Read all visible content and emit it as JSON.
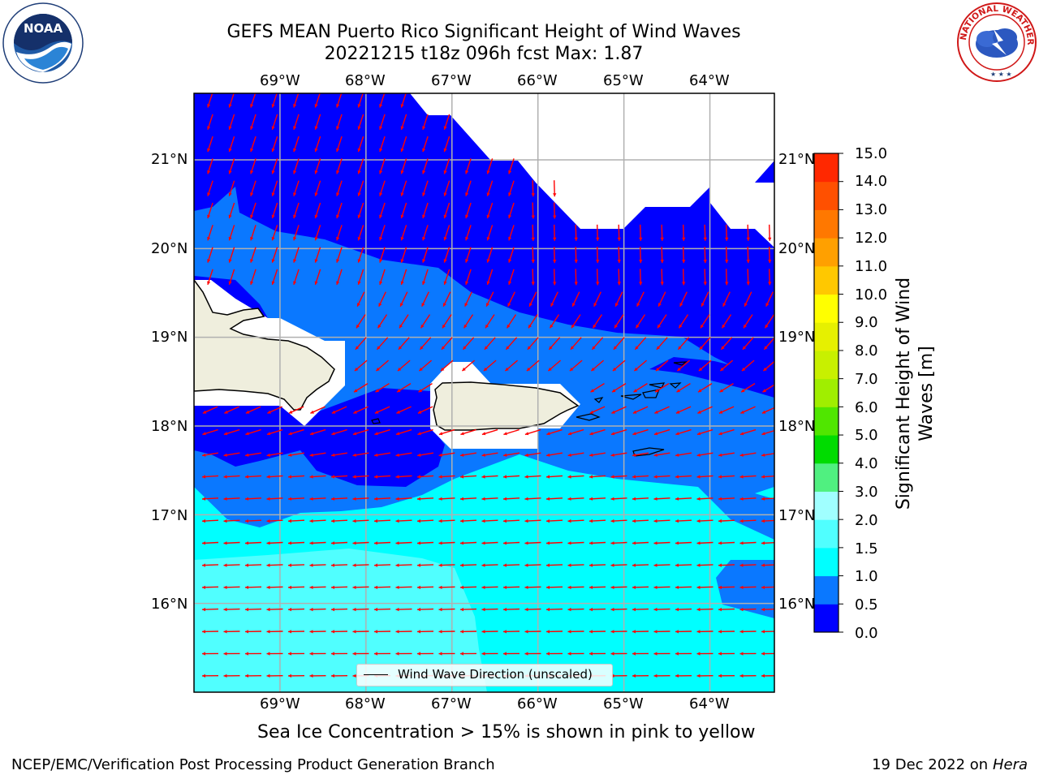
{
  "header": {
    "title_line1": "GEFS MEAN Puerto Rico Significant Height of Wind Waves",
    "title_line2": "20221215 t18z 096h fcst   Max: 1.87"
  },
  "logos": {
    "left": "NOAA",
    "left_ring_text": "NATIONAL OCEANIC AND ATMOSPHERIC ADMINISTRATION · U.S. DEPARTMENT OF COMMERCE",
    "right_ring_text": "NATIONAL WEATHER SERVICE"
  },
  "map": {
    "lon_labels": [
      "69°W",
      "68°W",
      "67°W",
      "66°W",
      "65°W",
      "64°W"
    ],
    "lat_labels": [
      "21°N",
      "20°N",
      "19°N",
      "18°N",
      "17°N",
      "16°N"
    ],
    "extent": {
      "lon_min": -70.0,
      "lon_max": -63.25,
      "lat_min": 15.0,
      "lat_max": 21.75
    },
    "legend": "Wind Wave Direction (unscaled)",
    "colors": {
      "land": "#efeedd",
      "coast": "#000000",
      "grid": "#b0b0b0",
      "arrow": "#ff0000"
    }
  },
  "colorbar": {
    "title": "Significant Height of Wind Waves [m]",
    "ticks": [
      "0.0",
      "0.5",
      "1.0",
      "1.5",
      "2.0",
      "3.0",
      "4.0",
      "5.0",
      "6.0",
      "7.0",
      "8.0",
      "9.0",
      "10.0",
      "11.0",
      "12.0",
      "13.0",
      "14.0",
      "15.0"
    ],
    "colors": [
      "#0000ff",
      "#0a78ff",
      "#00ffff",
      "#50ffff",
      "#a0ffff",
      "#50f080",
      "#00dc00",
      "#50e600",
      "#a0ee00",
      "#c8f000",
      "#e6f000",
      "#ffff00",
      "#ffc800",
      "#ffa000",
      "#ff7800",
      "#ff5000",
      "#ff2800"
    ]
  },
  "note": "Sea Ice Concentration > 15% is shown in pink to yellow",
  "footer": {
    "left": "NCEP/EMC/Verification Post Processing Product Generation Branch",
    "right_date": "19 Dec 2022 on",
    "right_machine": "Hera"
  }
}
